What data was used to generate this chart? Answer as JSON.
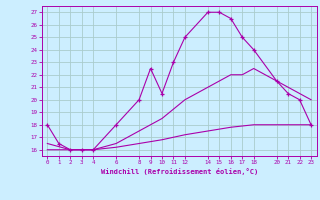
{
  "xlabel": "Windchill (Refroidissement éolien,°C)",
  "bg_color": "#cceeff",
  "grid_color": "#aacccc",
  "line_color": "#aa00aa",
  "line1_x": [
    0,
    1,
    2,
    3,
    4,
    6,
    8,
    9,
    10,
    11,
    12,
    14,
    15,
    16,
    17,
    18,
    20,
    21,
    22,
    23
  ],
  "line1_y": [
    18,
    16.5,
    16,
    16,
    16,
    18,
    20,
    22.5,
    20.5,
    23,
    25,
    27,
    27,
    26.5,
    25,
    24,
    21.5,
    20.5,
    20,
    18
  ],
  "line2_x": [
    0,
    2,
    4,
    6,
    8,
    10,
    12,
    14,
    16,
    17,
    18,
    20,
    21,
    22,
    23
  ],
  "line2_y": [
    16.5,
    16,
    16,
    16.5,
    17.5,
    18.5,
    20,
    21,
    22,
    22,
    22.5,
    21.5,
    21,
    20.5,
    20
  ],
  "line3_x": [
    0,
    2,
    4,
    6,
    8,
    10,
    12,
    14,
    16,
    18,
    20,
    22,
    23
  ],
  "line3_y": [
    16,
    16,
    16,
    16.2,
    16.5,
    16.8,
    17.2,
    17.5,
    17.8,
    18,
    18,
    18,
    18
  ],
  "xticks": [
    0,
    1,
    2,
    3,
    4,
    6,
    8,
    9,
    10,
    11,
    12,
    14,
    15,
    16,
    17,
    18,
    20,
    21,
    22,
    23
  ],
  "yticks": [
    16,
    17,
    18,
    19,
    20,
    21,
    22,
    23,
    24,
    25,
    26,
    27
  ],
  "xlim": [
    -0.5,
    23.5
  ],
  "ylim": [
    15.5,
    27.5
  ]
}
